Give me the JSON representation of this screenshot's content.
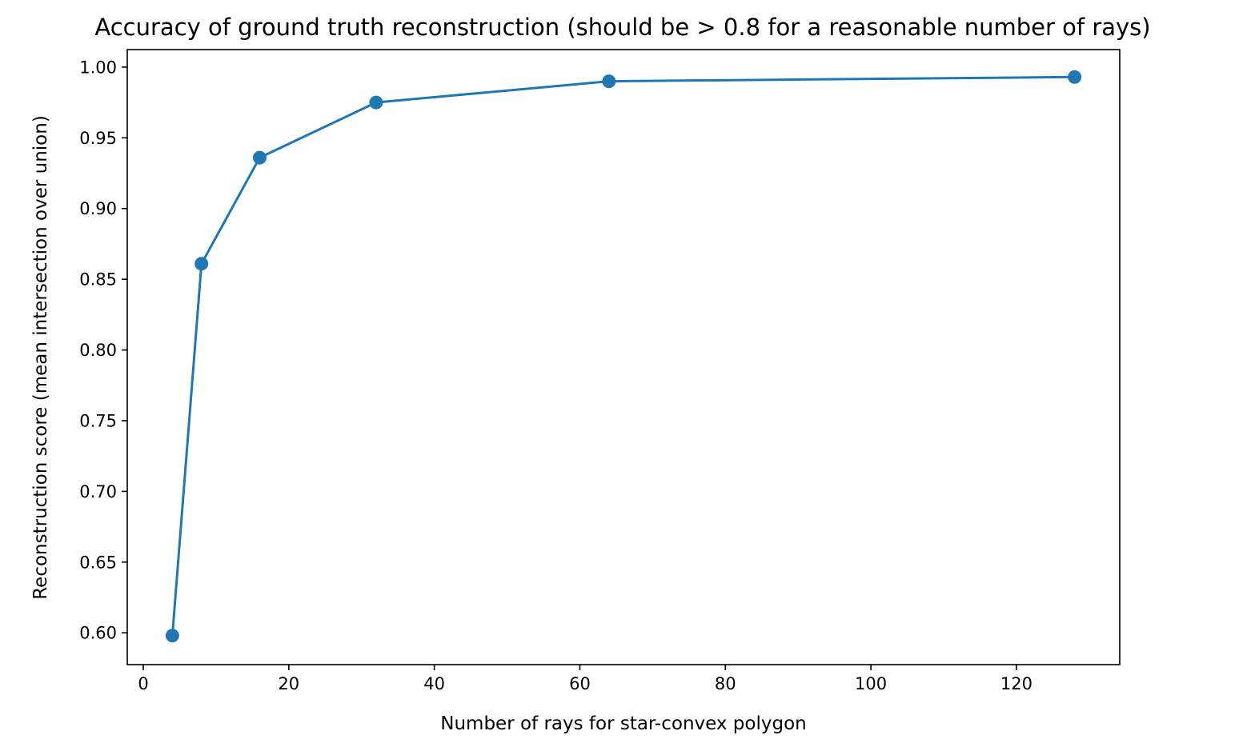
{
  "chart_data": {
    "type": "line",
    "title": "Accuracy of ground truth reconstruction (should be > 0.8 for a reasonable number of rays)",
    "xlabel": "Number of rays for star-convex polygon",
    "ylabel": "Reconstruction score (mean intersection over union)",
    "xlim": [
      -2.2,
      134.2
    ],
    "ylim": [
      0.5775,
      1.0124
    ],
    "xticks": [
      0,
      20,
      40,
      60,
      80,
      100,
      120
    ],
    "yticks": [
      0.6,
      0.65,
      0.7,
      0.75,
      0.8,
      0.85,
      0.9,
      0.95,
      1.0
    ],
    "xtick_labels": [
      "0",
      "20",
      "40",
      "60",
      "80",
      "100",
      "120"
    ],
    "ytick_labels": [
      "0.60",
      "0.65",
      "0.70",
      "0.75",
      "0.80",
      "0.85",
      "0.90",
      "0.95",
      "1.00"
    ],
    "grid": false,
    "marker": "circle",
    "series": [
      {
        "x": [
          4,
          8,
          16,
          32,
          64,
          128
        ],
        "values": [
          0.598,
          0.861,
          0.936,
          0.975,
          0.99,
          0.993
        ],
        "color": "#1f77b4"
      }
    ]
  }
}
